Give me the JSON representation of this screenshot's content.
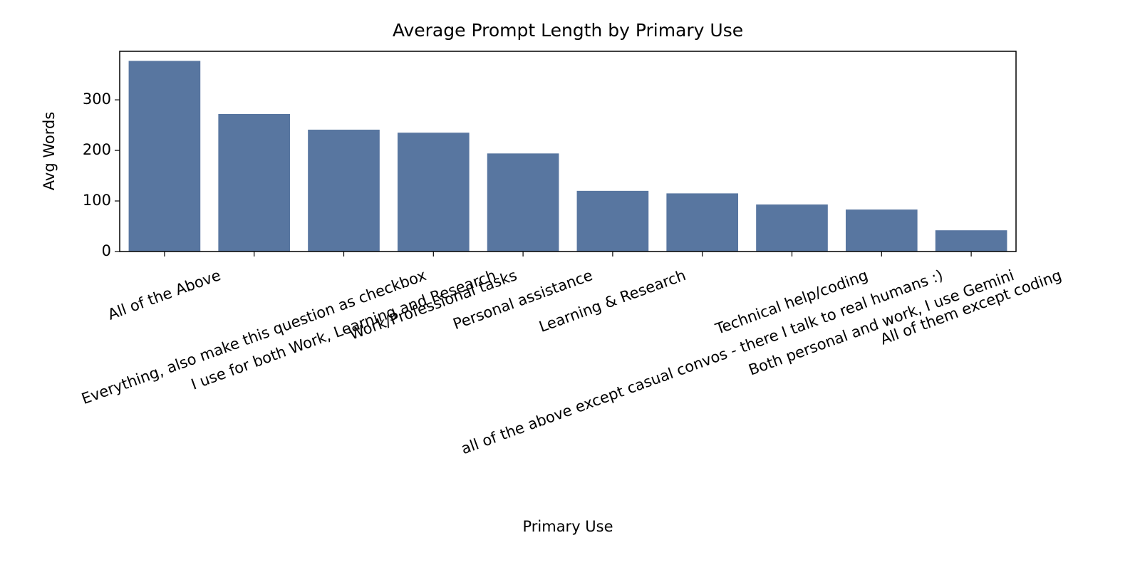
{
  "chart_data": {
    "type": "bar",
    "title": "Average Prompt Length by Primary Use",
    "x_label": "Primary Use",
    "y_label": "Avg Words",
    "categories": [
      "All of the Above",
      "Everything, also make this question as checkbox",
      "I use for both Work, Learning and Research",
      "Work/Professional tasks",
      "Personal assistance",
      "Learning & Research",
      "all of the above except casual convos - there I talk to real humans :)",
      "Technical help/coding",
      "Both personal and work, I use Gemini",
      "All of them except coding"
    ],
    "values": [
      377,
      272,
      241,
      235,
      194,
      120,
      115,
      93,
      83,
      42
    ],
    "color": "#5876a0",
    "ylim": [
      0,
      396
    ],
    "yticks": [
      0,
      100,
      200,
      300
    ],
    "grid": false
  }
}
